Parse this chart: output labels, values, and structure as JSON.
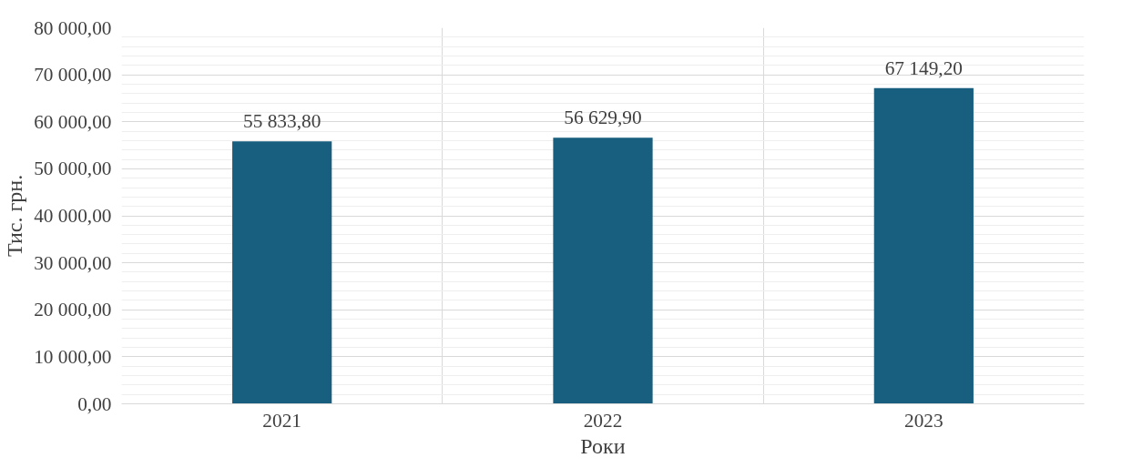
{
  "chart_data": {
    "type": "bar",
    "xlabel": "Роки",
    "ylabel": "Тис. грн.",
    "categories": [
      "2021",
      "2022",
      "2023"
    ],
    "values": [
      55833.8,
      56629.9,
      67149.2
    ],
    "value_labels": [
      "55 833,80",
      "56 629,90",
      "67 149,20"
    ],
    "color": "#175e7f",
    "ylim": [
      0,
      80000
    ],
    "yticks": [
      {
        "value": 0,
        "label": "0,00"
      },
      {
        "value": 10000,
        "label": "10 000,00"
      },
      {
        "value": 20000,
        "label": "20 000,00"
      },
      {
        "value": 30000,
        "label": "30 000,00"
      },
      {
        "value": 40000,
        "label": "40 000,00"
      },
      {
        "value": 50000,
        "label": "50 000,00"
      },
      {
        "value": 60000,
        "label": "60 000,00"
      },
      {
        "value": 70000,
        "label": "70 000,00"
      },
      {
        "value": 80000,
        "label": "80 000,00"
      }
    ],
    "grid": true
  }
}
